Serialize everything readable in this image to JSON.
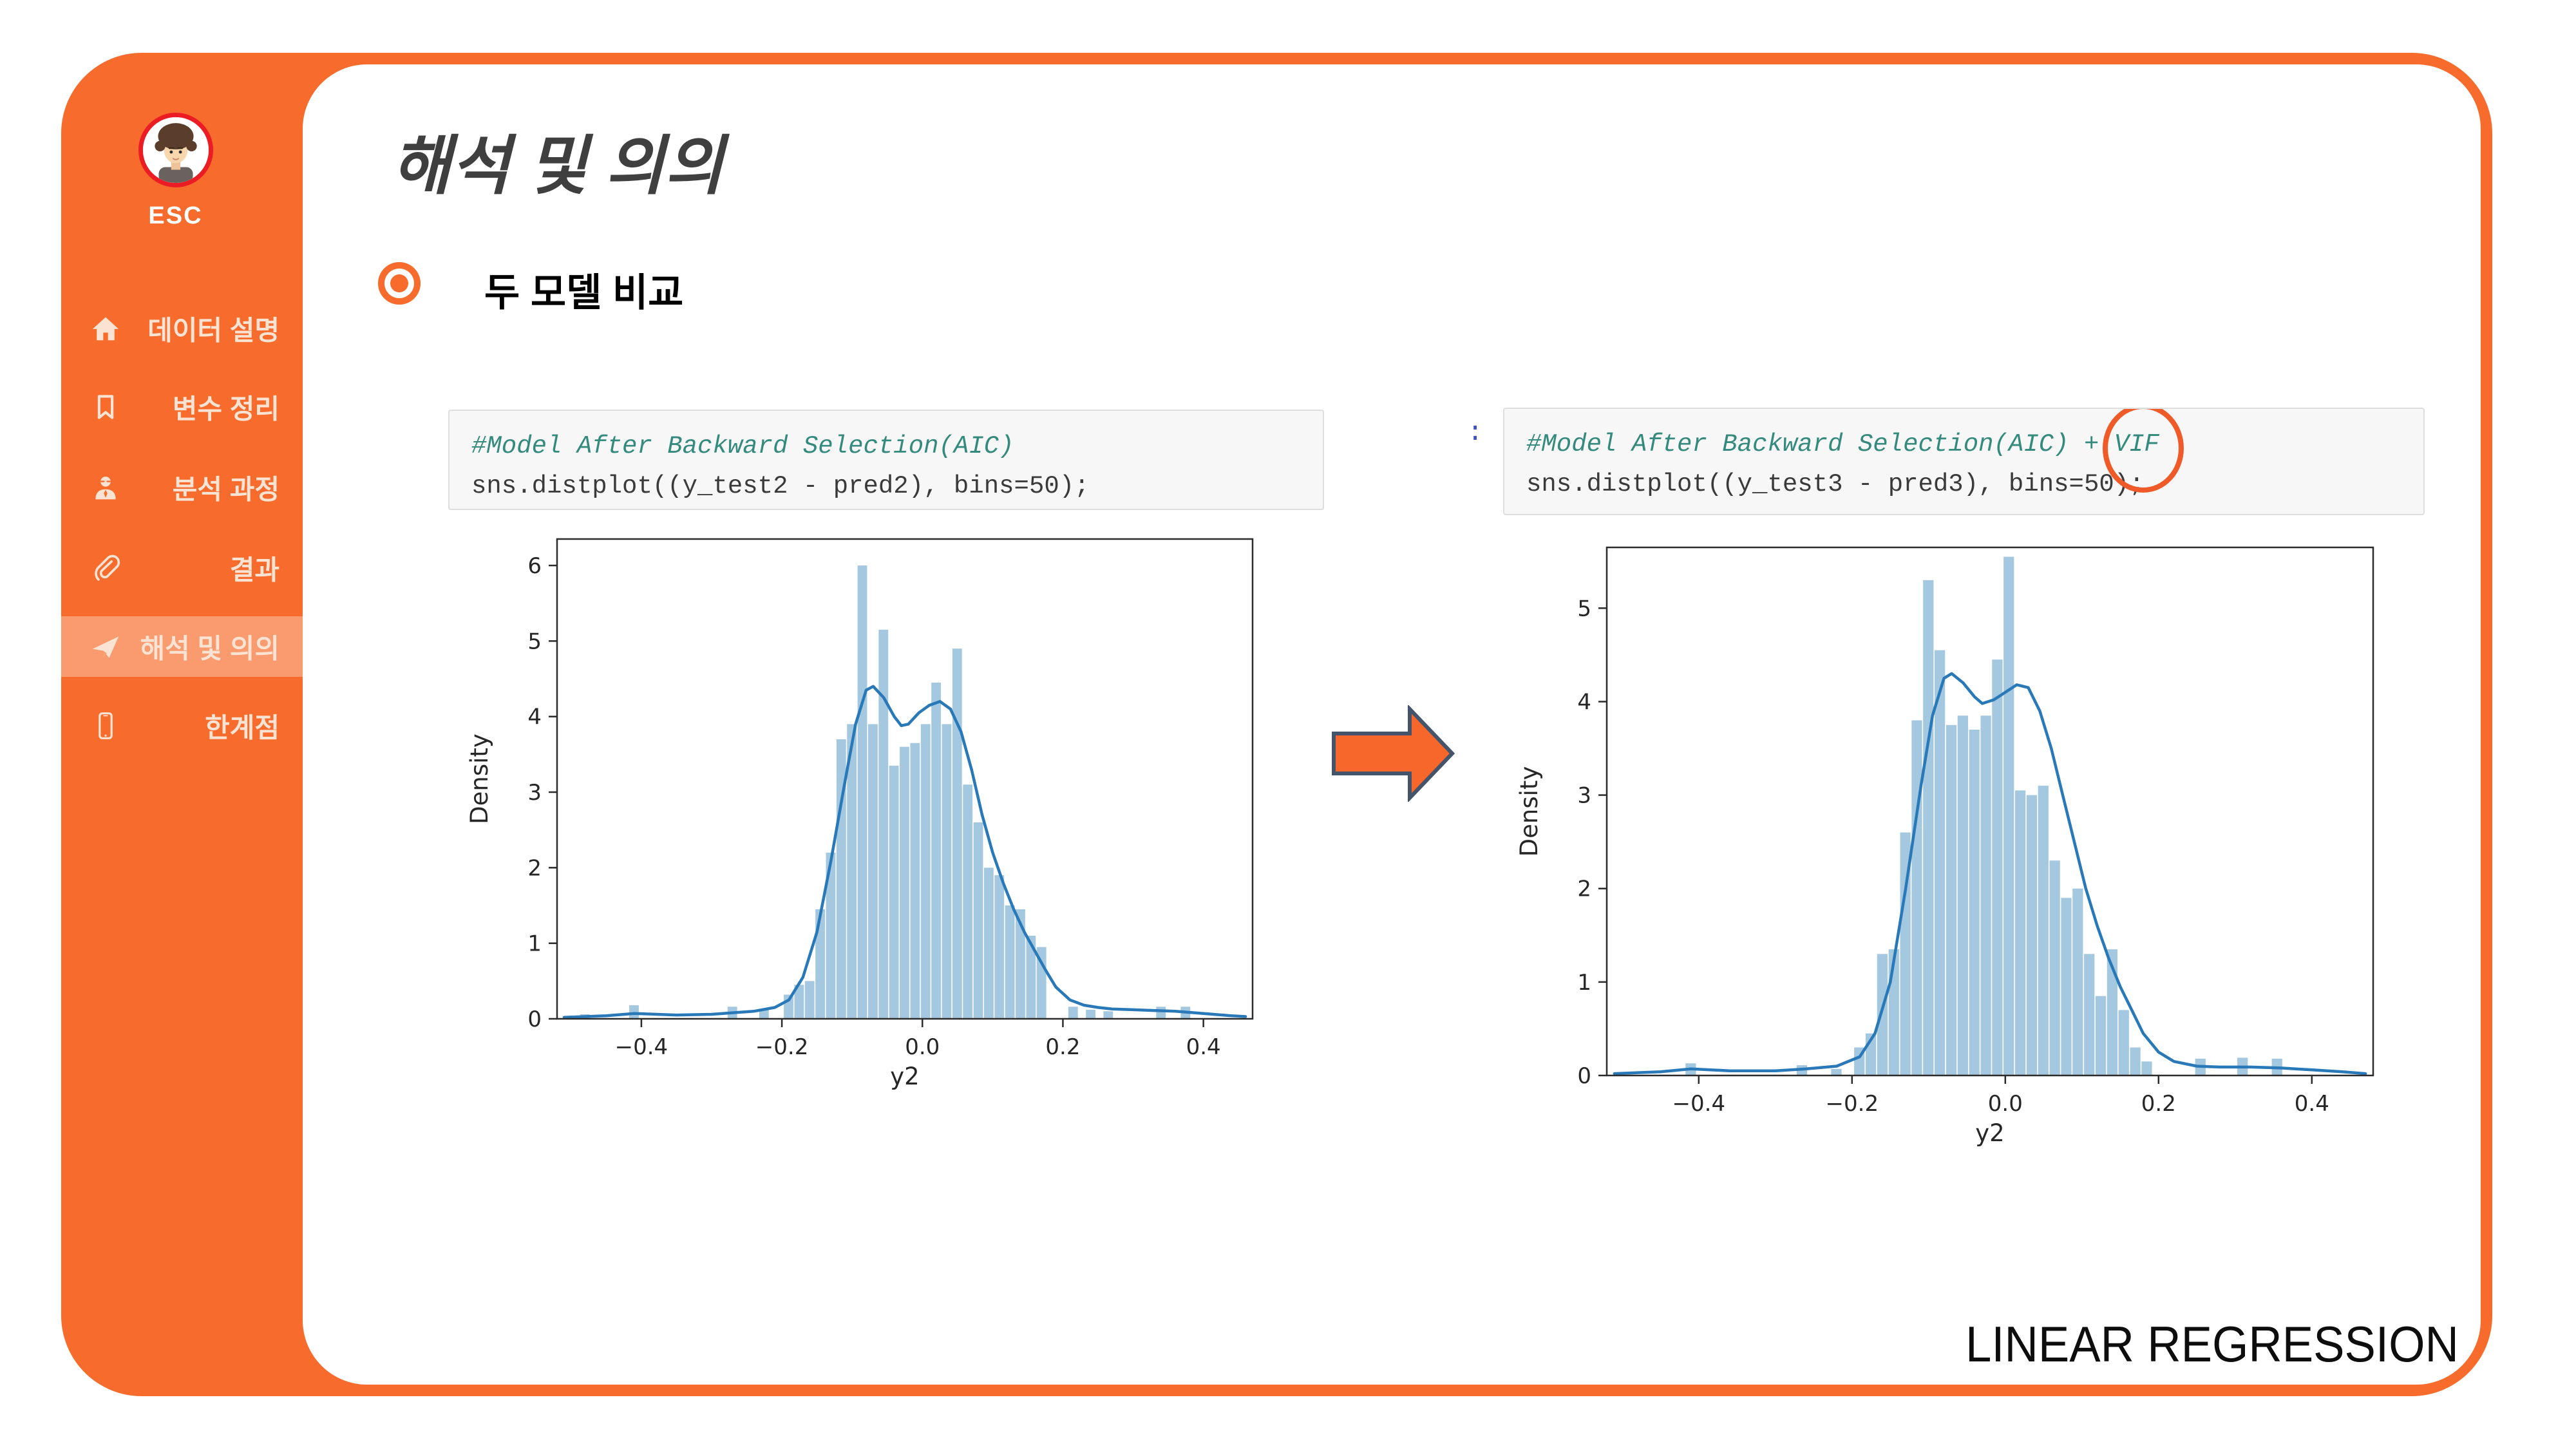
{
  "sidebar": {
    "esc_label": "ESC",
    "active_index": 4,
    "items": [
      {
        "label": "데이터 설명",
        "icon": "home-icon"
      },
      {
        "label": "변수 정리",
        "icon": "bookmark-icon"
      },
      {
        "label": "분석 과정",
        "icon": "analyst-icon"
      },
      {
        "label": "결과",
        "icon": "paperclip-icon"
      },
      {
        "label": "해석 및 의의",
        "icon": "paper-plane-icon"
      },
      {
        "label": "한계점",
        "icon": "smartphone-icon"
      }
    ]
  },
  "main": {
    "title": "해석 및 의의",
    "bullet_label": "두 모델 비교",
    "prompt_colon": ":",
    "footer_label": "LINEAR REGRESSION"
  },
  "code_blocks": [
    {
      "comment": "#Model After Backward Selection(AIC)",
      "code": "sns.distplot((y_test2 - pred2), bins=50);"
    },
    {
      "comment_prefix": "#Model After Backward Selection(AIC) + ",
      "highlighted_term": "VIF",
      "code": "sns.distplot((y_test3 - pred3), bins=50);"
    }
  ],
  "colors": {
    "frame_orange": "#F76C2C",
    "sidebar_text_cream": "#FBE3D4",
    "avatar_ring_red": "#EC1C24",
    "title_gray": "#3F3F3F",
    "comment_teal": "#348A7D",
    "code_text": "#3A3A3A",
    "prompt_blue": "#3F51C1",
    "vif_ring_orange": "#F05A28",
    "arrow_fill": "#F7672B",
    "arrow_border": "#44546A",
    "hist_bar": "#A5C8E1",
    "kde_line": "#2979B9"
  },
  "chart_data": [
    {
      "type": "histogram+kde",
      "title": "",
      "xlabel": "y2",
      "ylabel": "Density",
      "xlim": [
        -0.52,
        0.47
      ],
      "ylim": [
        0,
        6.35
      ],
      "xticks": [
        -0.4,
        -0.2,
        0.0,
        0.2,
        0.4
      ],
      "yticks": [
        0,
        1,
        2,
        3,
        4,
        5,
        6
      ],
      "grid": false,
      "legend": "none",
      "bin_width": 0.0145,
      "bar_color": "#A5C8E1",
      "line_color": "#2979B9",
      "bars": [
        [
          -0.48,
          0.06
        ],
        [
          -0.41,
          0.18
        ],
        [
          -0.27,
          0.16
        ],
        [
          -0.225,
          0.13
        ],
        [
          -0.19,
          0.32
        ],
        [
          -0.175,
          0.45
        ],
        [
          -0.16,
          0.5
        ],
        [
          -0.145,
          1.45
        ],
        [
          -0.13,
          2.2
        ],
        [
          -0.115,
          3.7
        ],
        [
          -0.1,
          3.9
        ],
        [
          -0.085,
          6.0
        ],
        [
          -0.07,
          3.9
        ],
        [
          -0.055,
          5.15
        ],
        [
          -0.04,
          3.35
        ],
        [
          -0.025,
          3.6
        ],
        [
          -0.01,
          3.65
        ],
        [
          0.005,
          3.9
        ],
        [
          0.02,
          4.45
        ],
        [
          0.035,
          3.9
        ],
        [
          0.05,
          4.9
        ],
        [
          0.065,
          3.1
        ],
        [
          0.08,
          2.6
        ],
        [
          0.095,
          2.0
        ],
        [
          0.11,
          1.9
        ],
        [
          0.125,
          1.5
        ],
        [
          0.14,
          1.45
        ],
        [
          0.155,
          1.1
        ],
        [
          0.17,
          0.95
        ],
        [
          0.215,
          0.16
        ],
        [
          0.24,
          0.12
        ],
        [
          0.265,
          0.1
        ],
        [
          0.34,
          0.16
        ],
        [
          0.375,
          0.16
        ]
      ],
      "kde": [
        [
          -0.51,
          0.02
        ],
        [
          -0.45,
          0.04
        ],
        [
          -0.41,
          0.07
        ],
        [
          -0.35,
          0.05
        ],
        [
          -0.3,
          0.06
        ],
        [
          -0.27,
          0.08
        ],
        [
          -0.24,
          0.1
        ],
        [
          -0.21,
          0.15
        ],
        [
          -0.19,
          0.25
        ],
        [
          -0.17,
          0.55
        ],
        [
          -0.15,
          1.15
        ],
        [
          -0.13,
          2.1
        ],
        [
          -0.11,
          3.15
        ],
        [
          -0.095,
          3.9
        ],
        [
          -0.08,
          4.35
        ],
        [
          -0.07,
          4.4
        ],
        [
          -0.055,
          4.25
        ],
        [
          -0.04,
          4.0
        ],
        [
          -0.03,
          3.88
        ],
        [
          -0.02,
          3.9
        ],
        [
          -0.005,
          4.05
        ],
        [
          0.01,
          4.15
        ],
        [
          0.025,
          4.2
        ],
        [
          0.04,
          4.1
        ],
        [
          0.055,
          3.8
        ],
        [
          0.07,
          3.3
        ],
        [
          0.085,
          2.7
        ],
        [
          0.1,
          2.2
        ],
        [
          0.115,
          1.8
        ],
        [
          0.13,
          1.45
        ],
        [
          0.145,
          1.15
        ],
        [
          0.16,
          0.9
        ],
        [
          0.175,
          0.65
        ],
        [
          0.19,
          0.42
        ],
        [
          0.21,
          0.25
        ],
        [
          0.23,
          0.18
        ],
        [
          0.25,
          0.15
        ],
        [
          0.27,
          0.13
        ],
        [
          0.3,
          0.12
        ],
        [
          0.33,
          0.11
        ],
        [
          0.36,
          0.1
        ],
        [
          0.4,
          0.07
        ],
        [
          0.44,
          0.04
        ],
        [
          0.46,
          0.03
        ]
      ]
    },
    {
      "type": "histogram+kde",
      "title": "",
      "xlabel": "y2",
      "ylabel": "Density",
      "xlim": [
        -0.52,
        0.48
      ],
      "ylim": [
        0,
        5.65
      ],
      "xticks": [
        -0.4,
        -0.2,
        0.0,
        0.2,
        0.4
      ],
      "yticks": [
        0,
        1,
        2,
        3,
        4,
        5
      ],
      "grid": false,
      "legend": "none",
      "bin_width": 0.0145,
      "bar_color": "#A5C8E1",
      "line_color": "#2979B9",
      "bars": [
        [
          -0.41,
          0.13
        ],
        [
          -0.265,
          0.11
        ],
        [
          -0.22,
          0.07
        ],
        [
          -0.19,
          0.3
        ],
        [
          -0.175,
          0.45
        ],
        [
          -0.16,
          1.3
        ],
        [
          -0.145,
          1.35
        ],
        [
          -0.13,
          2.6
        ],
        [
          -0.115,
          3.8
        ],
        [
          -0.1,
          5.3
        ],
        [
          -0.085,
          4.55
        ],
        [
          -0.07,
          3.75
        ],
        [
          -0.055,
          3.85
        ],
        [
          -0.04,
          3.7
        ],
        [
          -0.025,
          3.85
        ],
        [
          -0.01,
          4.45
        ],
        [
          0.005,
          5.55
        ],
        [
          0.02,
          3.05
        ],
        [
          0.035,
          3.0
        ],
        [
          0.05,
          3.1
        ],
        [
          0.065,
          2.3
        ],
        [
          0.08,
          1.9
        ],
        [
          0.095,
          2.0
        ],
        [
          0.11,
          1.3
        ],
        [
          0.125,
          0.85
        ],
        [
          0.14,
          1.35
        ],
        [
          0.155,
          0.7
        ],
        [
          0.17,
          0.3
        ],
        [
          0.185,
          0.15
        ],
        [
          0.255,
          0.18
        ],
        [
          0.31,
          0.19
        ],
        [
          0.355,
          0.18
        ]
      ],
      "kde": [
        [
          -0.51,
          0.02
        ],
        [
          -0.45,
          0.04
        ],
        [
          -0.41,
          0.07
        ],
        [
          -0.36,
          0.05
        ],
        [
          -0.3,
          0.05
        ],
        [
          -0.26,
          0.07
        ],
        [
          -0.22,
          0.1
        ],
        [
          -0.19,
          0.2
        ],
        [
          -0.17,
          0.45
        ],
        [
          -0.15,
          1.0
        ],
        [
          -0.13,
          2.0
        ],
        [
          -0.11,
          3.1
        ],
        [
          -0.095,
          3.85
        ],
        [
          -0.08,
          4.25
        ],
        [
          -0.07,
          4.3
        ],
        [
          -0.055,
          4.2
        ],
        [
          -0.04,
          4.05
        ],
        [
          -0.03,
          3.98
        ],
        [
          -0.015,
          4.02
        ],
        [
          0.0,
          4.1
        ],
        [
          0.015,
          4.18
        ],
        [
          0.03,
          4.15
        ],
        [
          0.045,
          3.9
        ],
        [
          0.06,
          3.5
        ],
        [
          0.075,
          3.0
        ],
        [
          0.09,
          2.5
        ],
        [
          0.105,
          2.0
        ],
        [
          0.12,
          1.6
        ],
        [
          0.135,
          1.25
        ],
        [
          0.15,
          0.95
        ],
        [
          0.165,
          0.7
        ],
        [
          0.18,
          0.45
        ],
        [
          0.2,
          0.25
        ],
        [
          0.22,
          0.15
        ],
        [
          0.25,
          0.1
        ],
        [
          0.28,
          0.09
        ],
        [
          0.32,
          0.09
        ],
        [
          0.36,
          0.08
        ],
        [
          0.4,
          0.06
        ],
        [
          0.44,
          0.04
        ],
        [
          0.47,
          0.02
        ]
      ]
    }
  ]
}
